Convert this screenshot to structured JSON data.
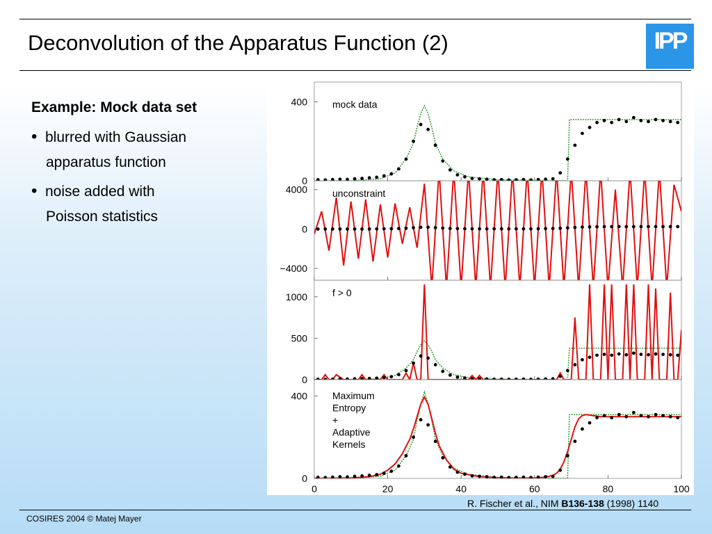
{
  "slide": {
    "title": "Deconvolution of the Apparatus Function (2)",
    "logo_text": "IPP",
    "content": {
      "heading": "Example: Mock data set",
      "bullets": [
        {
          "lines": [
            "blurred with Gaussian",
            "apparatus function"
          ]
        },
        {
          "lines": [
            "noise added with",
            "Poisson statistics"
          ]
        }
      ]
    },
    "citation": {
      "prefix": "R. Fischer et al., NIM ",
      "volume": "B136-138",
      "suffix": " (1998) 1140"
    },
    "footer": "COSIRES 2004 © Matej Mayer"
  },
  "colors": {
    "true_signal": "#2e9a2e",
    "reconstruction": "#e01010",
    "data_points": "#000000",
    "logo": "#2b95e8"
  },
  "chart_data": [
    {
      "type": "line",
      "label": "mock data",
      "xlim": [
        0,
        100
      ],
      "ylim": [
        0,
        500
      ],
      "yticks": [
        0,
        400
      ],
      "ytick_labels": [
        "0",
        "400"
      ],
      "series": [
        {
          "role": "true_signal",
          "style": "dashed",
          "x": [
            0,
            10,
            18,
            22,
            25,
            27,
            28,
            29,
            30,
            31,
            32,
            33,
            35,
            38,
            42,
            50,
            60,
            69,
            69.5,
            70,
            100
          ],
          "y": [
            0,
            0,
            10,
            40,
            110,
            190,
            270,
            340,
            380,
            340,
            270,
            190,
            110,
            50,
            20,
            5,
            2,
            0,
            310,
            310,
            310
          ]
        },
        {
          "role": "data",
          "style": "points",
          "x": [
            1,
            3,
            5,
            7,
            9,
            11,
            13,
            15,
            17,
            19,
            21,
            23,
            25,
            27,
            29,
            31,
            33,
            35,
            37,
            39,
            41,
            43,
            45,
            47,
            49,
            51,
            53,
            55,
            57,
            59,
            61,
            63,
            65,
            67,
            69,
            71,
            73,
            75,
            77,
            79,
            81,
            83,
            85,
            87,
            89,
            91,
            93,
            95,
            97,
            99
          ],
          "y": [
            5,
            4,
            6,
            8,
            7,
            10,
            12,
            15,
            18,
            25,
            35,
            60,
            110,
            200,
            285,
            260,
            180,
            100,
            55,
            30,
            20,
            12,
            10,
            8,
            5,
            6,
            4,
            5,
            6,
            4,
            6,
            8,
            10,
            40,
            110,
            180,
            240,
            270,
            295,
            305,
            295,
            310,
            300,
            320,
            305,
            300,
            310,
            305,
            300,
            295
          ]
        }
      ]
    },
    {
      "type": "line",
      "label": "unconstraint",
      "xlim": [
        0,
        100
      ],
      "ylim": [
        -5200,
        4900
      ],
      "yticks": [
        4000,
        0,
        -4000
      ],
      "ytick_labels": [
        "4000",
        "0",
        "−4000"
      ],
      "series": [
        {
          "role": "reconstruction",
          "style": "solid",
          "x": [
            0,
            2,
            4,
            6,
            8,
            10,
            12,
            14,
            16,
            18,
            20,
            22,
            24,
            26,
            28,
            30,
            32,
            34,
            36,
            38,
            40,
            42,
            44,
            46,
            48,
            50,
            52,
            54,
            56,
            58,
            60,
            62,
            64,
            66,
            68,
            70,
            72,
            74,
            76,
            78,
            80,
            82,
            84,
            86,
            88,
            90,
            92,
            94,
            96,
            98,
            100
          ],
          "y": [
            -500,
            1800,
            -2200,
            3200,
            -3700,
            2800,
            -3000,
            3000,
            -3300,
            2500,
            -2900,
            2600,
            -1500,
            2200,
            -1900,
            4600,
            -6000,
            6000,
            -6000,
            6000,
            -6000,
            6000,
            -6000,
            6000,
            -6000,
            6000,
            -6000,
            6000,
            -6000,
            6000,
            -6000,
            6000,
            -6000,
            6000,
            -6000,
            6000,
            -6000,
            6000,
            -6000,
            6000,
            -6000,
            4000,
            -6000,
            6000,
            -6000,
            6000,
            -6000,
            6000,
            -6000,
            4500,
            1800
          ]
        },
        {
          "role": "data",
          "style": "points",
          "x": [
            1,
            3,
            5,
            7,
            9,
            11,
            13,
            15,
            17,
            19,
            21,
            23,
            25,
            27,
            29,
            31,
            33,
            35,
            37,
            39,
            41,
            43,
            45,
            47,
            49,
            51,
            53,
            55,
            57,
            59,
            61,
            63,
            65,
            67,
            69,
            71,
            73,
            75,
            77,
            79,
            81,
            83,
            85,
            87,
            89,
            91,
            93,
            95,
            97,
            99
          ],
          "y": [
            0,
            0,
            0,
            0,
            0,
            0,
            0,
            0,
            10,
            20,
            30,
            50,
            80,
            130,
            180,
            180,
            140,
            90,
            60,
            40,
            30,
            20,
            20,
            20,
            20,
            20,
            20,
            20,
            20,
            20,
            30,
            40,
            60,
            80,
            110,
            160,
            200,
            220,
            230,
            240,
            240,
            240,
            240,
            240,
            240,
            240,
            240,
            240,
            240,
            240
          ]
        }
      ]
    },
    {
      "type": "line",
      "label": "f > 0",
      "xlim": [
        0,
        100
      ],
      "ylim": [
        0,
        1200
      ],
      "yticks": [
        0,
        500,
        1000
      ],
      "ytick_labels": [
        "0",
        "500",
        "1000"
      ],
      "series": [
        {
          "role": "true_signal",
          "style": "dashed",
          "x": [
            0,
            10,
            18,
            22,
            25,
            27,
            28,
            29,
            30,
            31,
            32,
            33,
            35,
            38,
            42,
            50,
            60,
            69,
            69.5,
            70,
            100
          ],
          "y": [
            0,
            0,
            12,
            50,
            140,
            240,
            340,
            420,
            470,
            420,
            340,
            240,
            140,
            60,
            25,
            6,
            2,
            0,
            380,
            380,
            380
          ]
        },
        {
          "role": "reconstruction",
          "style": "solid",
          "x": [
            0,
            2,
            3,
            4,
            5,
            6,
            8,
            9,
            10,
            12,
            13,
            14,
            16,
            18,
            19,
            20,
            22,
            24,
            25,
            26,
            27,
            28,
            29,
            30,
            31,
            32,
            34,
            36,
            37,
            38,
            40,
            42,
            43,
            44,
            45,
            46,
            48,
            50,
            52,
            54,
            56,
            58,
            60,
            62,
            64,
            66,
            67,
            68,
            70,
            71,
            72,
            73,
            74,
            75,
            76,
            78,
            79,
            80,
            81,
            82,
            84,
            85,
            86,
            87,
            88,
            90,
            91,
            92,
            93,
            94,
            96,
            97,
            98,
            99,
            100
          ],
          "y": [
            0,
            0,
            60,
            0,
            0,
            60,
            0,
            0,
            0,
            0,
            60,
            0,
            0,
            0,
            60,
            0,
            0,
            0,
            80,
            0,
            200,
            0,
            0,
            1150,
            0,
            0,
            0,
            0,
            0,
            0,
            0,
            0,
            50,
            0,
            50,
            0,
            0,
            0,
            0,
            0,
            0,
            0,
            0,
            0,
            0,
            0,
            80,
            0,
            0,
            750,
            0,
            0,
            0,
            1150,
            0,
            0,
            1150,
            0,
            1150,
            0,
            0,
            1150,
            0,
            1150,
            0,
            0,
            1150,
            0,
            1100,
            0,
            0,
            1050,
            0,
            0,
            600
          ]
        },
        {
          "role": "data",
          "style": "points",
          "x": [
            1,
            3,
            5,
            7,
            9,
            11,
            13,
            15,
            17,
            19,
            21,
            23,
            25,
            27,
            29,
            31,
            33,
            35,
            37,
            39,
            41,
            43,
            45,
            47,
            49,
            51,
            53,
            55,
            57,
            59,
            61,
            63,
            65,
            67,
            69,
            71,
            73,
            75,
            77,
            79,
            81,
            83,
            85,
            87,
            89,
            91,
            93,
            95,
            97,
            99
          ],
          "y": [
            5,
            4,
            6,
            8,
            7,
            10,
            12,
            15,
            18,
            25,
            35,
            60,
            110,
            200,
            285,
            260,
            180,
            100,
            55,
            30,
            20,
            12,
            10,
            8,
            5,
            6,
            4,
            5,
            6,
            4,
            6,
            8,
            10,
            40,
            110,
            180,
            240,
            270,
            295,
            305,
            295,
            310,
            300,
            320,
            305,
            300,
            310,
            305,
            300,
            295
          ]
        }
      ]
    },
    {
      "type": "line",
      "label": "Maximum Entropy + Adaptive Kernels",
      "label_lines": [
        "Maximum",
        "Entropy",
        "   +",
        "Adaptive",
        "Kernels"
      ],
      "xlim": [
        0,
        100
      ],
      "ylim": [
        0,
        480
      ],
      "yticks": [
        0,
        400
      ],
      "ytick_labels": [
        "0",
        "400"
      ],
      "xticks": [
        0,
        20,
        40,
        60,
        80,
        100
      ],
      "series": [
        {
          "role": "true_signal",
          "style": "dashed",
          "x": [
            0,
            10,
            18,
            22,
            25,
            27,
            28,
            29,
            30,
            31,
            32,
            33,
            35,
            38,
            42,
            50,
            60,
            69,
            69.5,
            70,
            100
          ],
          "y": [
            0,
            0,
            10,
            40,
            110,
            190,
            280,
            360,
            420,
            360,
            280,
            190,
            110,
            50,
            20,
            5,
            2,
            0,
            310,
            310,
            310
          ]
        },
        {
          "role": "reconstruction",
          "style": "solid",
          "x": [
            0,
            5,
            10,
            15,
            18,
            20,
            22,
            24,
            26,
            27,
            28,
            29,
            30,
            31,
            32,
            33,
            34,
            36,
            38,
            40,
            45,
            50,
            55,
            60,
            63,
            65,
            66,
            67,
            68,
            69,
            70,
            71,
            72,
            73,
            74,
            76,
            78,
            80,
            85,
            90,
            95,
            100
          ],
          "y": [
            0,
            1,
            2,
            8,
            20,
            40,
            70,
            120,
            190,
            240,
            300,
            360,
            395,
            360,
            290,
            220,
            160,
            90,
            45,
            25,
            8,
            3,
            1,
            2,
            6,
            15,
            25,
            45,
            80,
            130,
            190,
            250,
            290,
            305,
            310,
            305,
            300,
            300,
            300,
            300,
            300,
            300
          ]
        },
        {
          "role": "data",
          "style": "points",
          "x": [
            1,
            3,
            5,
            7,
            9,
            11,
            13,
            15,
            17,
            19,
            21,
            23,
            25,
            27,
            29,
            31,
            33,
            35,
            37,
            39,
            41,
            43,
            45,
            47,
            49,
            51,
            53,
            55,
            57,
            59,
            61,
            63,
            65,
            67,
            69,
            71,
            73,
            75,
            77,
            79,
            81,
            83,
            85,
            87,
            89,
            91,
            93,
            95,
            97,
            99
          ],
          "y": [
            5,
            4,
            6,
            8,
            7,
            10,
            12,
            15,
            18,
            25,
            35,
            60,
            110,
            200,
            285,
            260,
            180,
            100,
            55,
            30,
            20,
            12,
            10,
            8,
            5,
            6,
            4,
            5,
            6,
            4,
            6,
            8,
            10,
            40,
            110,
            180,
            240,
            270,
            295,
            305,
            295,
            310,
            300,
            320,
            305,
            300,
            310,
            305,
            300,
            295
          ]
        }
      ]
    }
  ]
}
